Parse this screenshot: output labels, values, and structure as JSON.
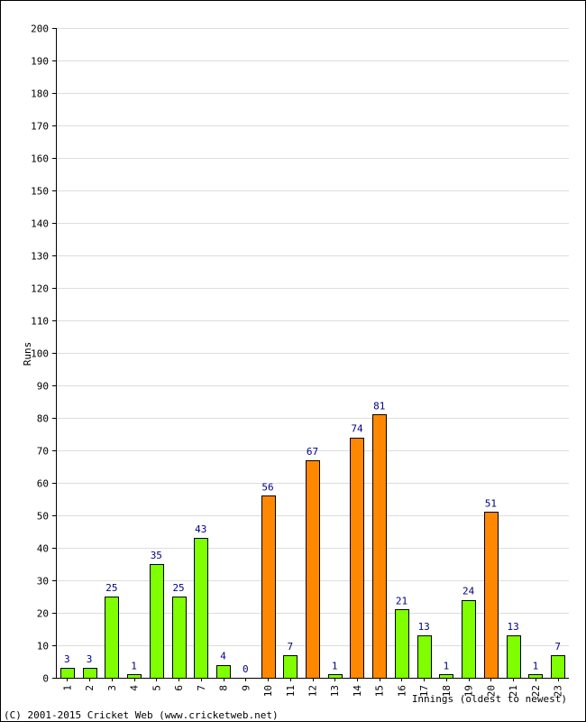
{
  "chart_data": {
    "type": "bar",
    "categories": [
      "1",
      "2",
      "3",
      "4",
      "5",
      "6",
      "7",
      "8",
      "9",
      "10",
      "11",
      "12",
      "13",
      "14",
      "15",
      "16",
      "17",
      "18",
      "19",
      "20",
      "21",
      "22",
      "23"
    ],
    "values": [
      3,
      3,
      25,
      1,
      35,
      25,
      43,
      4,
      0,
      56,
      7,
      67,
      1,
      74,
      81,
      21,
      13,
      1,
      24,
      51,
      13,
      1,
      7
    ],
    "bar_colors": [
      "#80ff00",
      "#80ff00",
      "#80ff00",
      "#80ff00",
      "#80ff00",
      "#80ff00",
      "#80ff00",
      "#80ff00",
      "#80ff00",
      "#ff8800",
      "#80ff00",
      "#ff8800",
      "#80ff00",
      "#ff8800",
      "#ff8800",
      "#80ff00",
      "#80ff00",
      "#80ff00",
      "#80ff00",
      "#ff8800",
      "#80ff00",
      "#80ff00",
      "#80ff00"
    ],
    "ylabel": "Runs",
    "xlabel": "Innings (oldest to newest)",
    "ylim": [
      0,
      200
    ],
    "ytick_step": 10,
    "grid": true,
    "label_color": "#000080",
    "grid_color": "#dddddd"
  },
  "footer": {
    "copyright": "(C) 2001-2015 Cricket Web (www.cricketweb.net)"
  }
}
